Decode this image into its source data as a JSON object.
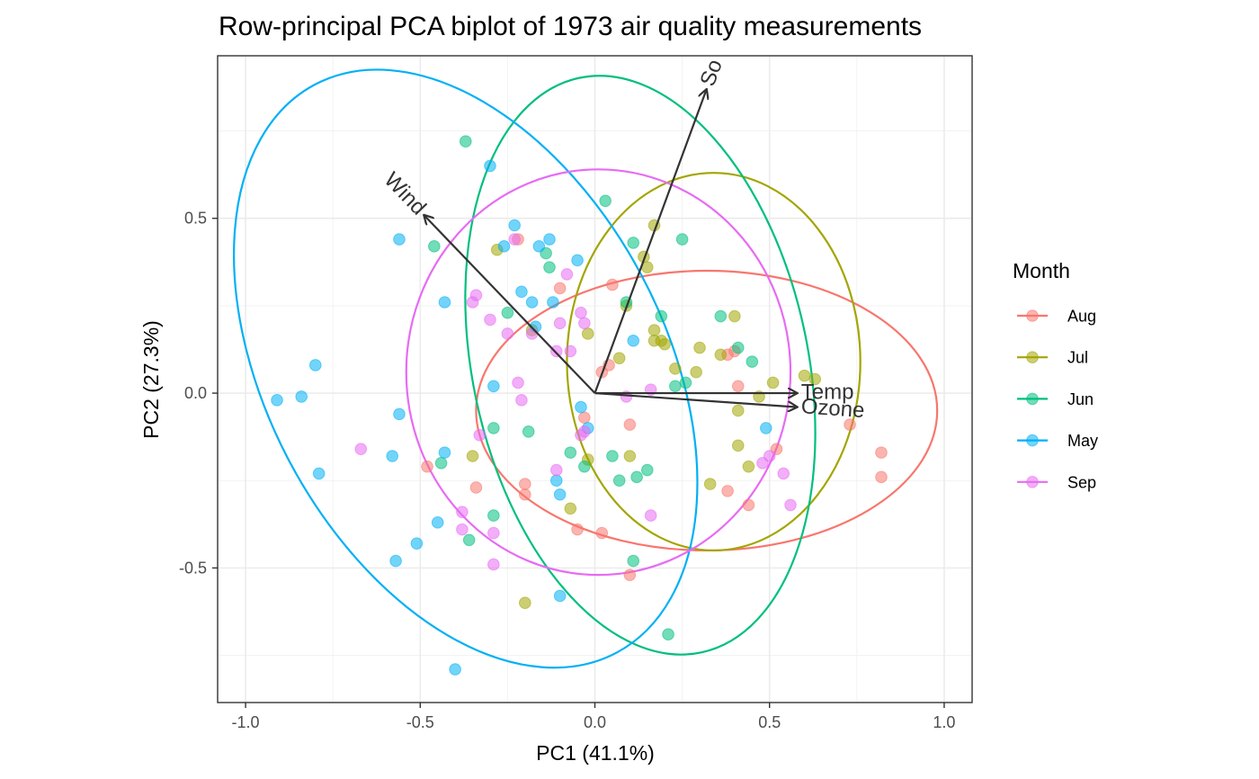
{
  "chart_data": {
    "type": "scatter",
    "title": "Row-principal PCA biplot of 1973 air quality measurements",
    "xlabel": "PC1 (41.1%)",
    "ylabel": "PC2 (27.3%)",
    "xlim": [
      -1.08,
      1.08
    ],
    "ylim": [
      -0.885,
      0.965
    ],
    "x_ticks": [
      -1.0,
      -0.5,
      0.0,
      0.5,
      1.0
    ],
    "x_tick_labels": [
      "-1.0",
      "-0.5",
      "0.0",
      "0.5",
      "1.0"
    ],
    "y_ticks": [
      -0.5,
      0.0,
      0.5
    ],
    "y_tick_labels": [
      "-0.5",
      "0.0",
      "0.5"
    ],
    "grid": true,
    "legend": {
      "title": "Month",
      "position": "right"
    },
    "series": [
      {
        "name": "Aug",
        "color": "#F8766D",
        "points": [
          [
            -0.48,
            -0.21
          ],
          [
            -0.34,
            -0.27
          ],
          [
            -0.22,
            0.44
          ],
          [
            -0.2,
            -0.29
          ],
          [
            -0.2,
            -0.26
          ],
          [
            -0.1,
            0.3
          ],
          [
            -0.05,
            -0.39
          ],
          [
            -0.03,
            -0.07
          ],
          [
            0.02,
            -0.4
          ],
          [
            0.02,
            0.06
          ],
          [
            0.04,
            0.08
          ],
          [
            0.05,
            0.31
          ],
          [
            0.1,
            -0.09
          ],
          [
            0.1,
            -0.52
          ],
          [
            0.38,
            -0.28
          ],
          [
            0.38,
            0.11
          ],
          [
            0.4,
            0.12
          ],
          [
            0.41,
            0.02
          ],
          [
            0.44,
            -0.32
          ],
          [
            0.52,
            -0.16
          ],
          [
            0.73,
            -0.09
          ],
          [
            0.82,
            -0.17
          ],
          [
            0.82,
            -0.24
          ]
        ]
      },
      {
        "name": "Jul",
        "color": "#A3A500",
        "points": [
          [
            -0.35,
            -0.18
          ],
          [
            -0.28,
            0.41
          ],
          [
            -0.18,
            0.18
          ],
          [
            -0.07,
            -0.33
          ],
          [
            -0.02,
            -0.19
          ],
          [
            -0.02,
            0.17
          ],
          [
            0.07,
            0.1
          ],
          [
            0.09,
            0.25
          ],
          [
            0.1,
            -0.18
          ],
          [
            0.14,
            0.39
          ],
          [
            0.15,
            0.36
          ],
          [
            0.17,
            0.15
          ],
          [
            0.17,
            0.18
          ],
          [
            0.17,
            0.48
          ],
          [
            0.19,
            0.15
          ],
          [
            0.2,
            0.14
          ],
          [
            0.23,
            0.07
          ],
          [
            0.29,
            0.06
          ],
          [
            0.3,
            0.13
          ],
          [
            0.33,
            -0.26
          ],
          [
            0.36,
            0.11
          ],
          [
            0.4,
            0.22
          ],
          [
            0.41,
            -0.15
          ],
          [
            0.41,
            -0.05
          ],
          [
            0.44,
            -0.21
          ],
          [
            0.47,
            -0.01
          ],
          [
            0.51,
            0.03
          ],
          [
            0.6,
            0.05
          ],
          [
            0.63,
            0.04
          ],
          [
            -0.2,
            -0.6
          ]
        ]
      },
      {
        "name": "Jun",
        "color": "#00BF7D",
        "points": [
          [
            -0.37,
            0.72
          ],
          [
            -0.46,
            0.42
          ],
          [
            -0.44,
            -0.2
          ],
          [
            -0.36,
            -0.42
          ],
          [
            -0.29,
            -0.35
          ],
          [
            -0.25,
            0.23
          ],
          [
            -0.29,
            -0.1
          ],
          [
            -0.19,
            -0.11
          ],
          [
            -0.14,
            0.4
          ],
          [
            -0.13,
            0.36
          ],
          [
            -0.07,
            -0.17
          ],
          [
            -0.03,
            -0.21
          ],
          [
            0.03,
            0.55
          ],
          [
            0.05,
            -0.18
          ],
          [
            0.07,
            -0.25
          ],
          [
            0.09,
            0.26
          ],
          [
            0.11,
            0.43
          ],
          [
            0.12,
            -0.24
          ],
          [
            0.15,
            -0.22
          ],
          [
            0.19,
            0.22
          ],
          [
            0.21,
            -0.69
          ],
          [
            0.23,
            0.02
          ],
          [
            0.25,
            0.44
          ],
          [
            0.26,
            0.03
          ],
          [
            0.36,
            0.22
          ],
          [
            0.41,
            0.13
          ],
          [
            0.45,
            0.09
          ],
          [
            0.11,
            -0.48
          ]
        ]
      },
      {
        "name": "May",
        "color": "#00B0F6",
        "points": [
          [
            -0.91,
            -0.02
          ],
          [
            -0.84,
            -0.01
          ],
          [
            -0.8,
            0.08
          ],
          [
            -0.79,
            -0.23
          ],
          [
            -0.56,
            0.44
          ],
          [
            -0.56,
            -0.06
          ],
          [
            -0.58,
            -0.18
          ],
          [
            -0.57,
            -0.48
          ],
          [
            -0.51,
            -0.43
          ],
          [
            -0.45,
            -0.37
          ],
          [
            -0.43,
            0.26
          ],
          [
            -0.43,
            -0.17
          ],
          [
            -0.4,
            -0.79
          ],
          [
            -0.3,
            0.65
          ],
          [
            -0.29,
            0.02
          ],
          [
            -0.26,
            0.42
          ],
          [
            -0.23,
            0.48
          ],
          [
            -0.21,
            0.29
          ],
          [
            -0.18,
            0.26
          ],
          [
            -0.17,
            0.19
          ],
          [
            -0.16,
            0.42
          ],
          [
            -0.13,
            0.44
          ],
          [
            -0.12,
            0.26
          ],
          [
            -0.11,
            -0.25
          ],
          [
            -0.1,
            -0.29
          ],
          [
            -0.05,
            0.38
          ],
          [
            -0.02,
            -0.1
          ],
          [
            -0.04,
            -0.04
          ],
          [
            0.11,
            0.15
          ],
          [
            -0.1,
            -0.58
          ],
          [
            0.49,
            -0.1
          ]
        ]
      },
      {
        "name": "Sep",
        "color": "#E76BF3",
        "points": [
          [
            -0.67,
            -0.16
          ],
          [
            -0.35,
            0.26
          ],
          [
            -0.34,
            0.28
          ],
          [
            -0.33,
            -0.12
          ],
          [
            -0.3,
            0.21
          ],
          [
            -0.25,
            0.17
          ],
          [
            -0.23,
            0.44
          ],
          [
            -0.22,
            0.03
          ],
          [
            -0.21,
            -0.02
          ],
          [
            -0.18,
            0.17
          ],
          [
            -0.11,
            0.12
          ],
          [
            -0.11,
            -0.22
          ],
          [
            -0.1,
            0.2
          ],
          [
            -0.08,
            0.34
          ],
          [
            -0.07,
            0.12
          ],
          [
            -0.04,
            -0.12
          ],
          [
            -0.04,
            0.23
          ],
          [
            -0.03,
            0.2
          ],
          [
            -0.03,
            -0.11
          ],
          [
            0.09,
            -0.01
          ],
          [
            0.16,
            -0.35
          ],
          [
            0.48,
            -0.2
          ],
          [
            0.5,
            -0.18
          ],
          [
            0.54,
            -0.23
          ],
          [
            0.56,
            -0.32
          ],
          [
            -0.38,
            -0.34
          ],
          [
            -0.38,
            -0.39
          ],
          [
            -0.29,
            -0.4
          ],
          [
            -0.29,
            -0.49
          ],
          [
            0.16,
            0.01
          ]
        ]
      }
    ],
    "arrows": [
      {
        "name": "Wind",
        "x": -0.49,
        "y": 0.51
      },
      {
        "name": "So",
        "x": 0.32,
        "y": 0.87
      },
      {
        "name": "Temp",
        "x": 0.58,
        "y": 0.0
      },
      {
        "name": "Ozone",
        "x": 0.58,
        "y": -0.04
      }
    ],
    "ellipses": [
      {
        "name": "Aug",
        "color": "#F8766D",
        "cx": 0.32,
        "cy": -0.05,
        "rx": 0.66,
        "ry": 0.4,
        "angle": 0
      },
      {
        "name": "Jul",
        "color": "#A3A500",
        "cx": 0.34,
        "cy": 0.09,
        "rx": 0.42,
        "ry": 0.54,
        "angle": 0
      },
      {
        "name": "Jun",
        "color": "#00BF7D",
        "cx": 0.13,
        "cy": 0.08,
        "rx": 0.48,
        "ry": 0.84,
        "angle": -12
      },
      {
        "name": "May",
        "color": "#00B0F6",
        "cx": -0.37,
        "cy": 0.07,
        "rx": 0.57,
        "ry": 0.92,
        "angle": -28
      },
      {
        "name": "Sep",
        "color": "#E76BF3",
        "cx": 0.01,
        "cy": 0.06,
        "rx": 0.55,
        "ry": 0.58,
        "angle": 0
      }
    ]
  }
}
